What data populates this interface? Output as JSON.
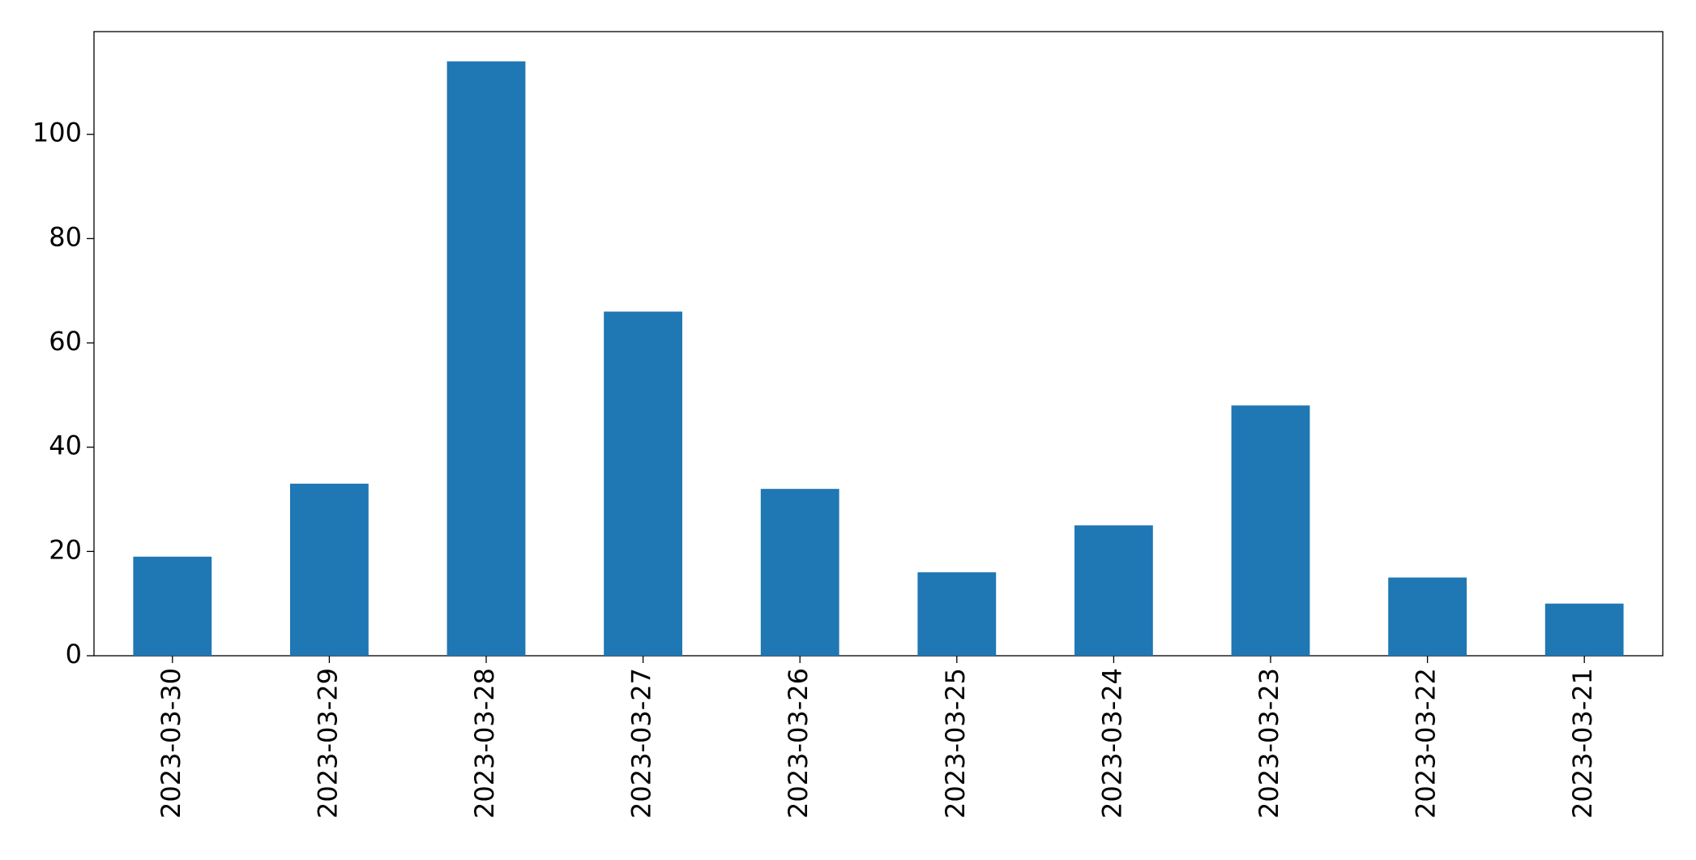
{
  "chart_data": {
    "type": "bar",
    "categories": [
      "2023-03-30",
      "2023-03-29",
      "2023-03-28",
      "2023-03-27",
      "2023-03-26",
      "2023-03-25",
      "2023-03-24",
      "2023-03-23",
      "2023-03-22",
      "2023-03-21"
    ],
    "values": [
      19,
      33,
      114,
      66,
      32,
      16,
      25,
      48,
      15,
      10
    ],
    "color": "#1f77b4",
    "ylim": [
      0,
      119.7
    ],
    "yticks": [
      0,
      20,
      40,
      60,
      80,
      100
    ],
    "grid": false
  }
}
